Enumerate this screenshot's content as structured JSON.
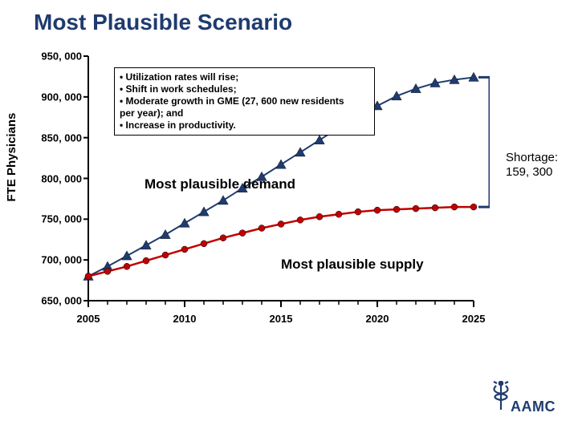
{
  "title": "Most Plausible Scenario",
  "ylabel": "FTE Physicians",
  "chart": {
    "type": "line",
    "background_color": "#ffffff",
    "axis_color": "#000000",
    "tick_color": "#000000",
    "tick_fontsize": 13,
    "title_color": "#1f3b6f",
    "title_fontsize": 28,
    "xlim": [
      2005,
      2025
    ],
    "ylim": [
      650000,
      950000
    ],
    "yticks": [
      650000,
      700000,
      750000,
      800000,
      850000,
      900000,
      950000
    ],
    "ytick_labels": [
      "650, 000",
      "700, 000",
      "750, 000",
      "800, 000",
      "850, 000",
      "900, 000",
      "950, 000"
    ],
    "xticks_major": [
      2005,
      2010,
      2015,
      2020,
      2025
    ],
    "xticks_minor": [
      2006,
      2007,
      2008,
      2009,
      2011,
      2012,
      2013,
      2014,
      2016,
      2017,
      2018,
      2019,
      2021,
      2022,
      2023,
      2024
    ],
    "xtick_labels": [
      "2005",
      "2010",
      "2015",
      "2020",
      "2025"
    ],
    "series": {
      "demand": {
        "label": "Most plausible demand",
        "line_color": "#1f3b6f",
        "line_width": 2,
        "marker": "triangle",
        "marker_fill": "#1f3b6f",
        "marker_size": 10,
        "x": [
          2005,
          2006,
          2007,
          2008,
          2009,
          2010,
          2011,
          2012,
          2013,
          2014,
          2015,
          2016,
          2017,
          2018,
          2019,
          2020,
          2021,
          2022,
          2023,
          2024,
          2025
        ],
        "y": [
          680000,
          692000,
          705000,
          718000,
          731000,
          745000,
          759000,
          773000,
          788000,
          802000,
          817000,
          832000,
          847000,
          862000,
          876000,
          889000,
          901000,
          910000,
          917000,
          921000,
          924000
        ]
      },
      "supply": {
        "label": "Most plausible supply",
        "line_color": "#c00000",
        "line_width": 2.5,
        "marker": "circle",
        "marker_fill": "#c00000",
        "marker_size": 8,
        "x": [
          2005,
          2006,
          2007,
          2008,
          2009,
          2010,
          2011,
          2012,
          2013,
          2014,
          2015,
          2016,
          2017,
          2018,
          2019,
          2020,
          2021,
          2022,
          2023,
          2024,
          2025
        ],
        "y": [
          680000,
          686000,
          692000,
          699000,
          706000,
          713000,
          720000,
          727000,
          733000,
          739000,
          744000,
          749000,
          753000,
          756000,
          759000,
          761000,
          762000,
          763000,
          764000,
          765000,
          765000
        ]
      }
    },
    "bracket_color": "#1f3b6f"
  },
  "info_box": {
    "border_color": "#000000",
    "bg_color": "#ffffff",
    "fontsize": 12,
    "lines": [
      "• Utilization rates will rise;",
      "• Shift in work schedules;",
      "• Moderate growth in GME (27, 600 new residents",
      "  per year); and",
      "• Increase in productivity."
    ]
  },
  "shortage": {
    "label": "Shortage:",
    "value": "159, 300",
    "fontsize": 15
  },
  "logo": {
    "text": "AAMC",
    "color": "#1f3b6f",
    "staff_color": "#1f3b6f"
  }
}
